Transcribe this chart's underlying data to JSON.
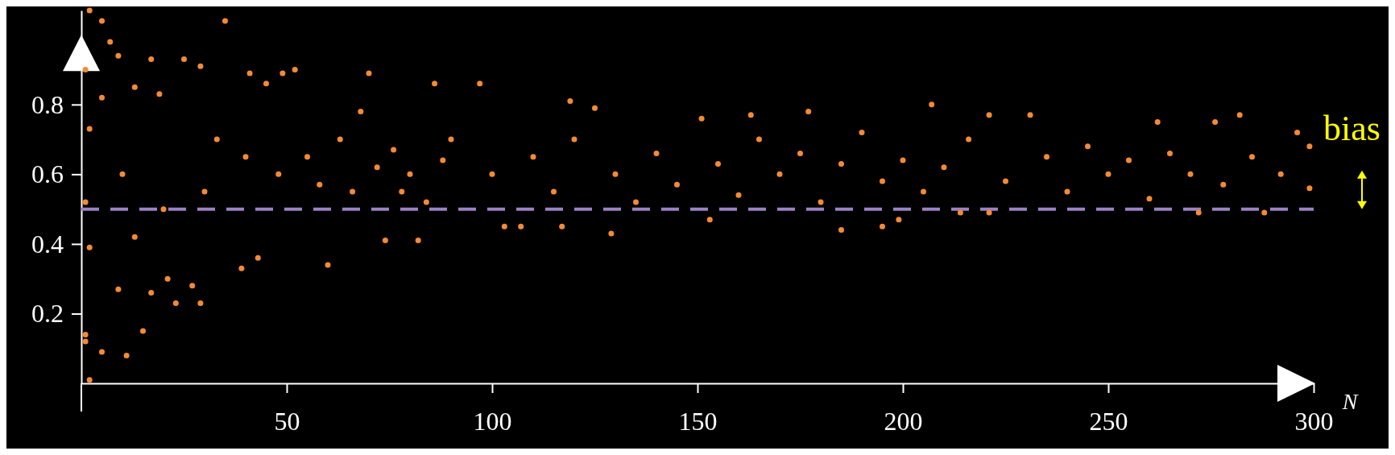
{
  "chart_data": {
    "type": "scatter",
    "xlabel": "N",
    "xlim": [
      0,
      300
    ],
    "ylim": [
      0,
      1.07
    ],
    "xticks": [
      50,
      100,
      150,
      200,
      250,
      300
    ],
    "yticks": [
      0.2,
      0.4,
      0.6,
      0.8
    ],
    "marker": "circle",
    "x": [
      1,
      1,
      1,
      1,
      2,
      2,
      2,
      2,
      5,
      5,
      5,
      7,
      9,
      9,
      10,
      11,
      13,
      13,
      15,
      17,
      17,
      19,
      20,
      21,
      23,
      25,
      27,
      29,
      29,
      30,
      33,
      35,
      39,
      40,
      41,
      43,
      45,
      48,
      49,
      52,
      55,
      58,
      60,
      63,
      66,
      68,
      70,
      72,
      74,
      76,
      78,
      80,
      82,
      84,
      86,
      88,
      90,
      97,
      100,
      103,
      107,
      110,
      115,
      117,
      119,
      120,
      125,
      129,
      130,
      135,
      140,
      145,
      151,
      153,
      155,
      160,
      163,
      165,
      170,
      175,
      177,
      180,
      185,
      185,
      190,
      195,
      195,
      199,
      200,
      205,
      207,
      210,
      214,
      216,
      221,
      221,
      225,
      231,
      235,
      240,
      245,
      250,
      255,
      260,
      262,
      265,
      270,
      272,
      276,
      278,
      282,
      285,
      288,
      292,
      296,
      299,
      299
    ],
    "values": [
      0.12,
      0.14,
      0.52,
      0.9,
      0.01,
      0.73,
      0.39,
      1.07,
      1.04,
      0.82,
      0.09,
      0.98,
      0.94,
      0.27,
      0.6,
      0.08,
      0.85,
      0.42,
      0.15,
      0.93,
      0.26,
      0.83,
      0.5,
      0.3,
      0.23,
      0.93,
      0.28,
      0.23,
      0.91,
      0.55,
      0.7,
      1.04,
      0.33,
      0.65,
      0.89,
      0.36,
      0.86,
      0.6,
      0.89,
      0.9,
      0.65,
      0.57,
      0.34,
      0.7,
      0.55,
      0.78,
      0.89,
      0.62,
      0.41,
      0.67,
      0.55,
      0.6,
      0.41,
      0.52,
      0.86,
      0.64,
      0.7,
      0.86,
      0.6,
      0.45,
      0.45,
      0.65,
      0.55,
      0.45,
      0.81,
      0.7,
      0.79,
      0.43,
      0.6,
      0.52,
      0.66,
      0.57,
      0.76,
      0.47,
      0.63,
      0.54,
      0.77,
      0.7,
      0.6,
      0.66,
      0.78,
      0.52,
      0.44,
      0.63,
      0.72,
      0.45,
      0.58,
      0.47,
      0.64,
      0.55,
      0.8,
      0.62,
      0.49,
      0.7,
      0.77,
      0.49,
      0.58,
      0.77,
      0.65,
      0.55,
      0.68,
      0.6,
      0.64,
      0.53,
      0.75,
      0.66,
      0.6,
      0.49,
      0.75,
      0.57,
      0.77,
      0.65,
      0.49,
      0.6,
      0.72,
      0.68,
      0.56
    ],
    "color": "#f58a35",
    "ref_lines": [
      {
        "axis": "y",
        "value": 0.5,
        "label": null,
        "color": "#9b82c4",
        "line_style": "dashed"
      }
    ],
    "annotations": [
      "bias"
    ]
  }
}
